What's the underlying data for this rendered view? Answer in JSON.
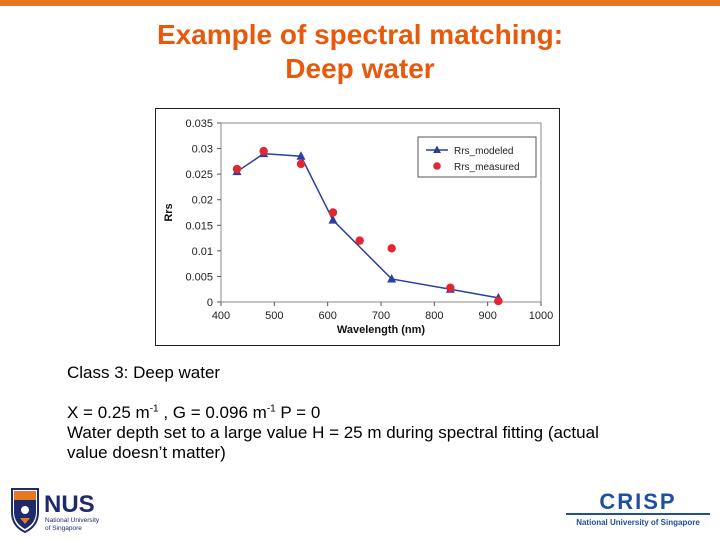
{
  "slide": {
    "title_line1": "Example of spectral matching:",
    "title_line2": "Deep water",
    "class_label": "Class 3: Deep water",
    "params": {
      "x_prefix": "X = 0.25 m",
      "x_exp": "-1",
      "g_prefix": " ,  G = 0.096 m",
      "g_exp": "-1",
      "p_text": " P = 0"
    },
    "depth_line1": "Water depth set to a large value H = 25 m during spectral fitting (actual",
    "depth_line2": "value doesn’t matter)"
  },
  "colors": {
    "accent": "#e87722",
    "title": "#e8590c",
    "modeled": "#2b3f9e",
    "measured": "#e3262f"
  },
  "logos": {
    "nus_text": "NUS",
    "nus_sub1": "National University",
    "nus_sub2": "of Singapore",
    "crisp_text": "CRISP",
    "crisp_sub": "National University of Singapore"
  },
  "chart_data": {
    "type": "line",
    "xlabel": "Wavelength (nm)",
    "ylabel": "Rrs",
    "xlim": [
      400,
      1000
    ],
    "ylim": [
      0,
      0.035
    ],
    "x_ticks": [
      "400",
      "500",
      "600",
      "700",
      "800",
      "900",
      "1000"
    ],
    "y_ticks": [
      "0",
      "0.005",
      "0.01",
      "0.015",
      "0.02",
      "0.025",
      "0.03",
      "0.035"
    ],
    "grid": false,
    "legend_position": "top-right",
    "series": [
      {
        "name": "Rrs_modeled",
        "style": "line-triangle",
        "color": "#2b3f9e",
        "x": [
          430,
          480,
          550,
          610,
          720,
          830,
          920
        ],
        "y": [
          0.0255,
          0.029,
          0.0285,
          0.016,
          0.0045,
          0.0025,
          0.0008
        ]
      },
      {
        "name": "Rrs_measured",
        "style": "dot",
        "color": "#e3262f",
        "x": [
          430,
          480,
          550,
          610,
          660,
          720,
          830,
          920
        ],
        "y": [
          0.026,
          0.0295,
          0.027,
          0.0175,
          0.012,
          0.0105,
          0.0028,
          0.0002
        ]
      }
    ]
  }
}
